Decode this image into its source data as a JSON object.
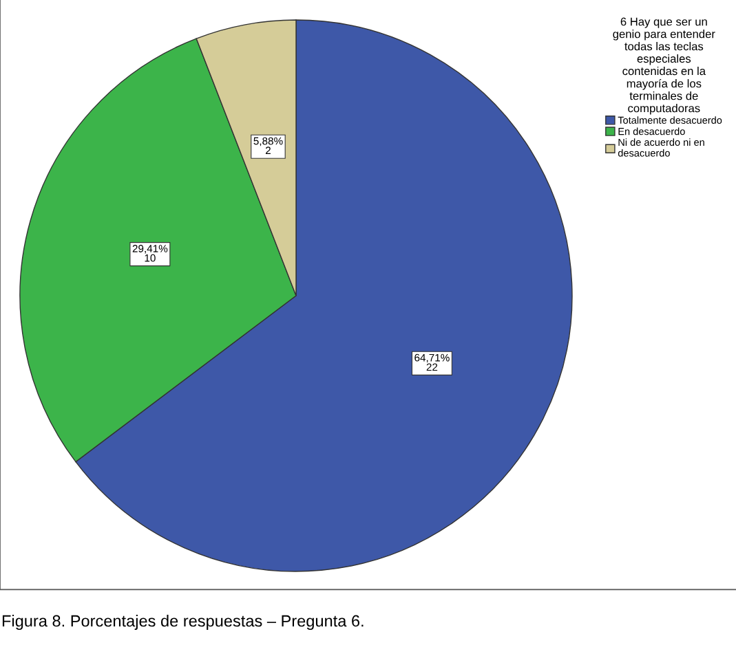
{
  "chart_data": {
    "type": "pie",
    "categories": [
      "Totalmente desacuerdo",
      "En desacuerdo",
      "Ni de acuerdo ni en\ndesacuerdo"
    ],
    "values": [
      22,
      10,
      2
    ],
    "value_labels": [
      "64,71%\n22",
      "29,41%\n10",
      "5,88%\n2"
    ],
    "colors": [
      "#3e58a8",
      "#3cb44a",
      "#d5cc98"
    ],
    "legend_title": "6 Hay que ser un\ngenio para entender\ntodas las teclas\nespeciales\ncontenidas en la\nmayoría de los\nterminales de\ncomputadoras",
    "legend": "top right",
    "annotations": [
      "Figura 8. Porcentajes de respuestas – Pregunta 6."
    ]
  }
}
